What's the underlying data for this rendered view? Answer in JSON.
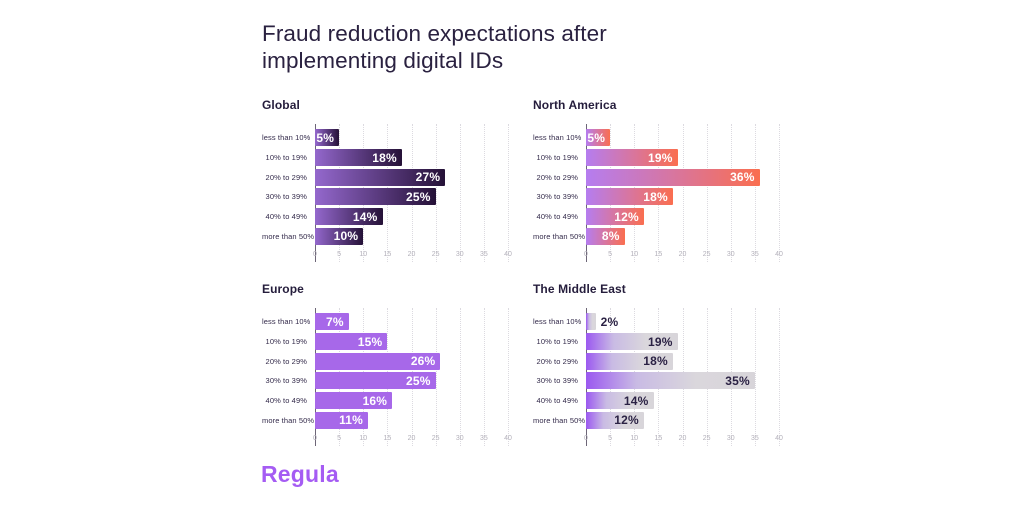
{
  "page": {
    "background": "#ffffff"
  },
  "title_lines": [
    "Fraud reduction expectations after",
    "implementing digital IDs"
  ],
  "logo": {
    "text": "Regula",
    "color": "#a55cf3"
  },
  "chart_data": {
    "type": "bar",
    "orientation": "horizontal",
    "layout": "2x2 small multiples",
    "title": "Fraud reduction expectations after implementing digital IDs",
    "categories": [
      "less than 10%",
      "10% to 19%",
      "20% to 29%",
      "30% to 39%",
      "40% to 49%",
      "more than 50%"
    ],
    "series": [
      {
        "name": "Global",
        "values": [
          5,
          18,
          27,
          25,
          14,
          10
        ]
      },
      {
        "name": "North America",
        "values": [
          5,
          19,
          36,
          18,
          12,
          8
        ]
      },
      {
        "name": "Europe",
        "values": [
          7,
          15,
          26,
          25,
          16,
          11
        ]
      },
      {
        "name": "The Middle East",
        "values": [
          2,
          19,
          18,
          35,
          14,
          12
        ]
      }
    ],
    "value_suffix": "%",
    "xlim": [
      0,
      40
    ],
    "x_ticks": [
      "0",
      "5",
      "10",
      "15",
      "20",
      "25",
      "30",
      "35",
      "40"
    ],
    "grid": "vertical-dotted",
    "legend": "none"
  },
  "chart_styles": [
    {
      "bar_stops": [
        "#9468cd 0%",
        "#251137 100%"
      ],
      "value_color": "#ffffff"
    },
    {
      "bar_stops": [
        "#b57df0 0%",
        "#fa6e4f 100%"
      ],
      "value_color": "#ffffff"
    },
    {
      "bar_stops": [
        "#a768e9 0%",
        "#a768e9 100%"
      ],
      "value_color": "#ffffff"
    },
    {
      "bar_stops": [
        "#9b58f0 0%",
        "#c9bbe4 30%",
        "#dad7dc 65%",
        "#d8d5da 100%"
      ],
      "value_color": "#2b2244"
    }
  ],
  "label_outside_when_value_at_most": 3,
  "outside_value_color": "#2b2244"
}
